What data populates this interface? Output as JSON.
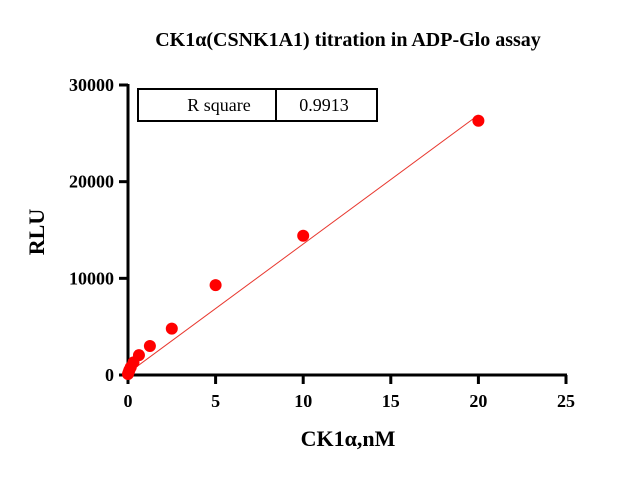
{
  "chart_data": {
    "type": "scatter",
    "title": "CK1α(CSNK1A1) titration in ADP-Glo assay",
    "xlabel": "CK1α,nM",
    "ylabel": "RLU",
    "xlim": [
      0,
      25
    ],
    "ylim": [
      0,
      30000
    ],
    "xticks": [
      0,
      5,
      10,
      15,
      20,
      25
    ],
    "yticks": [
      0,
      10000,
      20000,
      30000
    ],
    "grid": false,
    "point_color": "#ff0000",
    "line_color": "#e8382f",
    "series": [
      {
        "name": "RLU",
        "x": [
          0,
          0.039,
          0.078,
          0.156,
          0.3125,
          0.625,
          1.25,
          2.5,
          5,
          10,
          20
        ],
        "y": [
          100,
          300,
          500,
          800,
          1300,
          2050,
          3000,
          4800,
          9300,
          14400,
          26300
        ]
      }
    ],
    "fit": {
      "type": "linear",
      "slope": 1335,
      "intercept": 200,
      "x_range": [
        0,
        20
      ]
    },
    "annotation": {
      "label": "R square",
      "value": "0.9913"
    }
  }
}
